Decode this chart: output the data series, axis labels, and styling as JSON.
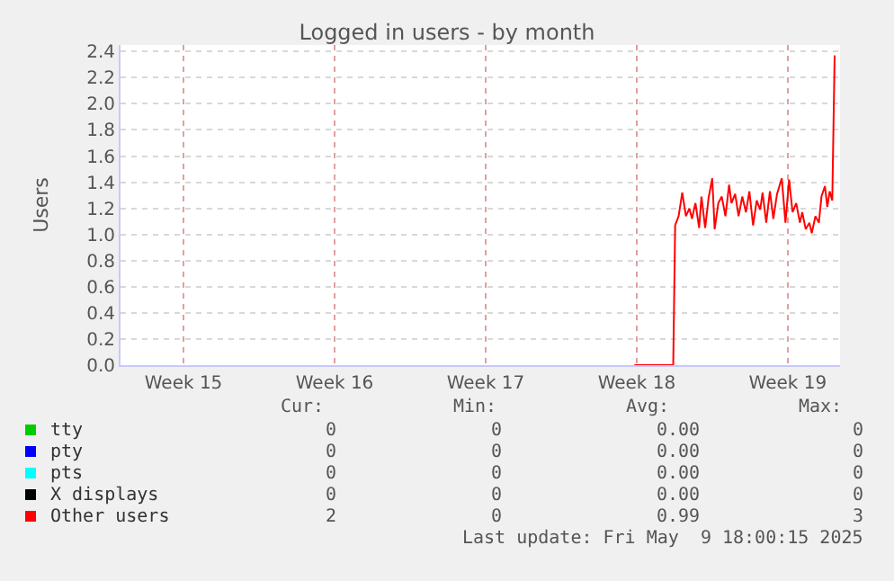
{
  "chart_data": {
    "type": "line",
    "title": "Logged in users - by month",
    "ylabel": "Users",
    "xlim": [
      "2025-04-06T13:55",
      "2025-05-09T22:05"
    ],
    "xticks": [
      {
        "value": "2025-04-09T12:00",
        "label": "Week 15"
      },
      {
        "value": "2025-04-16T12:00",
        "label": "Week 16"
      },
      {
        "value": "2025-04-23T12:00",
        "label": "Week 17"
      },
      {
        "value": "2025-04-30T12:00",
        "label": "Week 18"
      },
      {
        "value": "2025-05-07T12:00",
        "label": "Week 19"
      }
    ],
    "ylim": [
      0,
      2.45
    ],
    "yticks": [
      {
        "value": 0,
        "label": "0.0"
      },
      {
        "value": 0.2,
        "label": "0.2"
      },
      {
        "value": 0.4,
        "label": "0.4"
      },
      {
        "value": 0.6,
        "label": "0.6"
      },
      {
        "value": 0.8,
        "label": "0.8"
      },
      {
        "value": 1,
        "label": "1.0"
      },
      {
        "value": 1.2,
        "label": "1.2"
      },
      {
        "value": 1.4,
        "label": "1.4"
      },
      {
        "value": 1.6,
        "label": "1.6"
      },
      {
        "value": 1.8,
        "label": "1.8"
      },
      {
        "value": 2,
        "label": "2.0"
      },
      {
        "value": 2.2,
        "label": "2.2"
      },
      {
        "value": 2.4,
        "label": "2.4"
      }
    ],
    "grid": true,
    "legend": "bottom left",
    "marker": "none",
    "line_style": "solid",
    "series": [
      {
        "name": "tty",
        "color": "#00cc00"
      },
      {
        "name": "pty",
        "color": "#0000ff"
      },
      {
        "name": "pts",
        "color": "#00ffff"
      },
      {
        "name": "X displays",
        "color": "#000000"
      },
      {
        "name": "Other users",
        "color": "#ff0000",
        "x": [
          "2025-04-30T09:22",
          "2025-05-02T04:34",
          "2025-05-02T06:43",
          "2025-05-02T10:34",
          "2025-05-02T14:38",
          "2025-05-02T18:43",
          "2025-05-02T22:34",
          "2025-05-03T01:26",
          "2025-05-03T05:17",
          "2025-05-03T09:22",
          "2025-05-03T12:00",
          "2025-05-03T16:05",
          "2025-05-03T19:55",
          "2025-05-04T00:00",
          "2025-05-04T02:38",
          "2025-05-04T06:43",
          "2025-05-04T10:34",
          "2025-05-04T14:38",
          "2025-05-04T18:43",
          "2025-05-04T21:22",
          "2025-05-05T01:26",
          "2025-05-05T05:17",
          "2025-05-05T09:22",
          "2025-05-05T13:26",
          "2025-05-05T17:17",
          "2025-05-05T21:22",
          "2025-05-06T01:26",
          "2025-05-06T05:17",
          "2025-05-06T07:55",
          "2025-05-06T12:00",
          "2025-05-06T16:05",
          "2025-05-06T19:55",
          "2025-05-07T00:00",
          "2025-05-07T05:17",
          "2025-05-07T09:22",
          "2025-05-07T13:26",
          "2025-05-07T17:17",
          "2025-05-07T21:22",
          "2025-05-08T01:26",
          "2025-05-08T04:05",
          "2025-05-08T07:55",
          "2025-05-08T12:00",
          "2025-05-08T14:38",
          "2025-05-08T18:43",
          "2025-05-08T22:34",
          "2025-05-09T01:26",
          "2025-05-09T05:17",
          "2025-05-09T07:55",
          "2025-05-09T10:34",
          "2025-05-09T13:26",
          "2025-05-09T16:05"
        ],
        "values": [
          0,
          0,
          1.07,
          1.14,
          1.32,
          1.14,
          1.2,
          1.12,
          1.24,
          1.05,
          1.29,
          1.05,
          1.28,
          1.43,
          1.04,
          1.24,
          1.29,
          1.14,
          1.38,
          1.24,
          1.31,
          1.14,
          1.29,
          1.17,
          1.33,
          1.07,
          1.26,
          1.19,
          1.32,
          1.09,
          1.33,
          1.12,
          1.31,
          1.43,
          1.09,
          1.42,
          1.17,
          1.24,
          1.09,
          1.17,
          1.04,
          1.09,
          1.01,
          1.14,
          1.09,
          1.29,
          1.37,
          1.21,
          1.33,
          1.26,
          2.37
        ]
      }
    ],
    "annotations": [
      "Cur:",
      "Min:",
      "Avg:",
      "Max:",
      "0",
      "0",
      "0.00",
      "0",
      "0",
      "0",
      "0.00",
      "0",
      "0",
      "0",
      "0.00",
      "0",
      "0",
      "0",
      "0.00",
      "0",
      "2",
      "0",
      "0.99",
      "3",
      "Last update: Fri May  9 18:00:15 2025"
    ]
  }
}
